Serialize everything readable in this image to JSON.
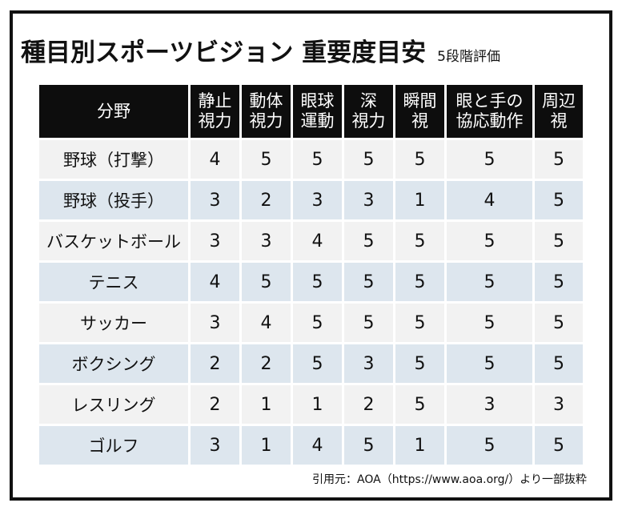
{
  "title": "種目別スポーツビジョン 重要度目安",
  "subtitle": "5段階評価",
  "table": {
    "headers": [
      "分野",
      "静止\n視力",
      "動体\n視力",
      "眼球\n運動",
      "深\n視力",
      "瞬間\n視",
      "眼と手の\n協応動作",
      "周辺\n視"
    ],
    "rows": [
      {
        "sport": "野球（打撃）",
        "values": [
          4,
          5,
          5,
          5,
          5,
          5,
          5
        ]
      },
      {
        "sport": "野球（投手）",
        "values": [
          3,
          2,
          3,
          3,
          1,
          4,
          5
        ]
      },
      {
        "sport": "バスケットボール",
        "values": [
          3,
          3,
          4,
          5,
          5,
          5,
          5
        ]
      },
      {
        "sport": "テニス",
        "values": [
          4,
          5,
          5,
          5,
          5,
          5,
          5
        ]
      },
      {
        "sport": "サッカー",
        "values": [
          3,
          4,
          5,
          5,
          5,
          5,
          5
        ]
      },
      {
        "sport": "ボクシング",
        "values": [
          2,
          2,
          5,
          3,
          5,
          5,
          5
        ]
      },
      {
        "sport": "レスリング",
        "values": [
          2,
          1,
          1,
          2,
          5,
          3,
          3
        ]
      },
      {
        "sport": "ゴルフ",
        "values": [
          3,
          1,
          4,
          5,
          1,
          5,
          5
        ]
      }
    ]
  },
  "credit": "引用元：AOA（https://www.aoa.org/）より一部抜粋",
  "colors": {
    "header_bg": "#0d0d0d",
    "row_odd": "#f2f2f2",
    "row_even": "#dde6ee",
    "frame": "#111111"
  }
}
